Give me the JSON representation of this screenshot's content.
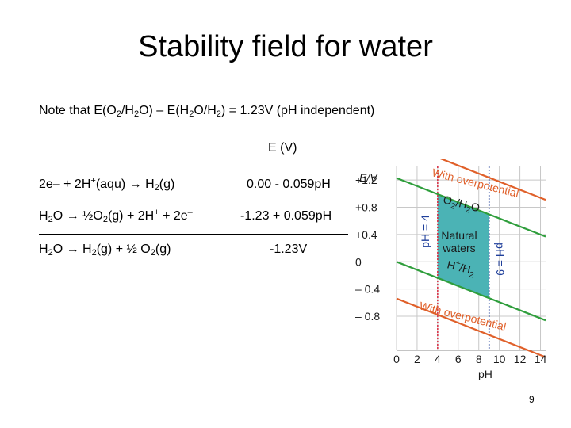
{
  "slide": {
    "title": "Stability field for water",
    "page_number": "9"
  },
  "note": {
    "prefix": "Note that E(O",
    "s1": "2",
    "t1": "/H",
    "s2": "2",
    "t2": "O) – E(H",
    "s3": "2",
    "t3": "O/H",
    "s4": "2",
    "t4": ")  =  1.23V  (pH independent)"
  },
  "table": {
    "e_header": "E (V)",
    "r1": {
      "a": "2e– + 2H",
      "sup1": "+",
      "b": "(aqu)  →  H",
      "sub1": "2",
      "c": "(g)",
      "e": "0.00 - 0.059pH"
    },
    "r2": {
      "a": "H",
      "sub1": "2",
      "b": "O  →  ½O",
      "sub2": "2",
      "c": "(g) + 2H",
      "sup1": "+",
      "d": " + 2e",
      "sup2": "–",
      "e": "-1.23 + 0.059pH"
    },
    "r3": {
      "a": "H",
      "sub1": "2",
      "b": "O  →  H",
      "sub2": "2",
      "c": "(g) +  ½ O",
      "sub3": "2",
      "d": "(g)",
      "e": "-1.23V"
    }
  },
  "chart_data": {
    "type": "line",
    "title": "",
    "xlabel": "pH",
    "ylabel": "E/V",
    "xlim": [
      0,
      14.5
    ],
    "ylim": [
      -1.3,
      1.4
    ],
    "xticks": [
      "0",
      "2",
      "4",
      "6",
      "8",
      "10",
      "12",
      "14"
    ],
    "xtick_values": [
      0,
      2,
      4,
      6,
      8,
      10,
      12,
      14
    ],
    "yticks": [
      "+1.2",
      "+0.8",
      "+0.4",
      "0",
      "– 0.4",
      "– 0.8"
    ],
    "ytick_values": [
      1.2,
      0.8,
      0.4,
      0,
      -0.4,
      -0.8
    ],
    "grid": true,
    "series": [
      {
        "name": "O2/H2O",
        "color": "#2f9e3c",
        "x": [
          0,
          14.5
        ],
        "y": [
          1.23,
          0.37
        ]
      },
      {
        "name": "H+/H2",
        "color": "#2f9e3c",
        "x": [
          0,
          14.5
        ],
        "y": [
          0.0,
          -0.86
        ]
      },
      {
        "name": "With overpotential",
        "color": "#e0602a",
        "x": [
          0,
          14.5
        ],
        "y": [
          1.77,
          0.91
        ]
      },
      {
        "name": "With overpotential",
        "color": "#e0602a",
        "x": [
          0,
          14.5
        ],
        "y": [
          -0.54,
          -1.4
        ]
      }
    ],
    "vertical_markers": [
      {
        "x": 4,
        "label": "pH = 4",
        "color": "#d7263d"
      },
      {
        "x": 9,
        "label": "pH = 9",
        "color": "#1f3f9b"
      }
    ],
    "shaded_region": {
      "label": "Natural waters",
      "x": [
        4,
        9
      ],
      "color": "#4bb3b5"
    },
    "annotations": {
      "with_overpotential": "With overpotential",
      "o2_h2o": "O2/H2O",
      "h_h2": "H+/H2",
      "natural": "Natural",
      "waters": "waters",
      "ph4": "pH = 4",
      "ph9": "pH = 9",
      "o2_a": "O",
      "o2_b": "2",
      "o2_c": "/H",
      "o2_d": "2",
      "o2_e": "O",
      "hh_a": "H",
      "hh_b": "+",
      "hh_c": "/H",
      "hh_d": "2"
    }
  }
}
